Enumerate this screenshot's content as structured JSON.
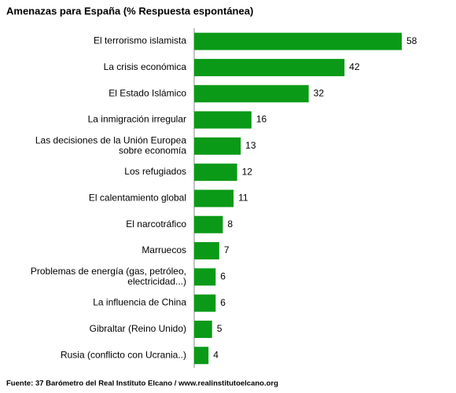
{
  "chart_data": {
    "type": "bar",
    "orientation": "horizontal",
    "title": "Amenazas para España (% Respuesta espontánea)",
    "source": "Fuente: 37 Barómetro del Real Instituto Elcano / www.realinstitutoelcano.org",
    "categories": [
      [
        "El terrorismo islamista"
      ],
      [
        "La crisis económica"
      ],
      [
        "El Estado Islámico"
      ],
      [
        "La inmigración irregular"
      ],
      [
        "Las decisiones de  la Unión Europea",
        "sobre economía"
      ],
      [
        "Los refugiados"
      ],
      [
        "El calentamiento global"
      ],
      [
        "El narcotráfico"
      ],
      [
        "Marruecos"
      ],
      [
        "Problemas de energía (gas, petróleo,",
        "electricidad...)"
      ],
      [
        "La influencia de China"
      ],
      [
        "Gibraltar (Reino Unido)"
      ],
      [
        "Rusia (conflicto con Ucrania..)"
      ]
    ],
    "values": [
      58,
      42,
      32,
      16,
      13,
      12,
      11,
      8,
      7,
      6,
      6,
      5,
      4
    ],
    "color": "#0a9a17"
  }
}
